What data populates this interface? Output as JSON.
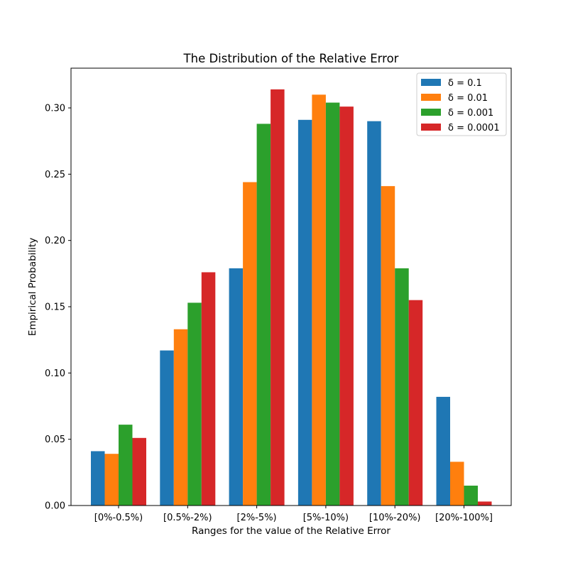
{
  "chart_data": {
    "type": "bar",
    "title": "The Distribution of the Relative Error",
    "xlabel": "Ranges for the value of the Relative Error",
    "ylabel": "Empirical Probability",
    "categories": [
      "[0%-0.5%)",
      "[0.5%-2%)",
      "[2%-5%)",
      "[5%-10%)",
      "[10%-20%)",
      "[20%-100%]"
    ],
    "ylim": [
      0,
      0.33
    ],
    "yticks": [
      "0.00",
      "0.05",
      "0.10",
      "0.15",
      "0.20",
      "0.25",
      "0.30"
    ],
    "grid": false,
    "legend_position": "top-right",
    "series": [
      {
        "name": "δ = 0.1",
        "color": "#1f77b4",
        "values": [
          0.041,
          0.117,
          0.179,
          0.291,
          0.29,
          0.082
        ]
      },
      {
        "name": "δ = 0.01",
        "color": "#ff7f0e",
        "values": [
          0.039,
          0.133,
          0.244,
          0.31,
          0.241,
          0.033
        ]
      },
      {
        "name": "δ = 0.001",
        "color": "#2ca02c",
        "values": [
          0.061,
          0.153,
          0.288,
          0.304,
          0.179,
          0.015
        ]
      },
      {
        "name": "δ = 0.0001",
        "color": "#d62728",
        "values": [
          0.051,
          0.176,
          0.314,
          0.301,
          0.155,
          0.003
        ]
      }
    ]
  }
}
